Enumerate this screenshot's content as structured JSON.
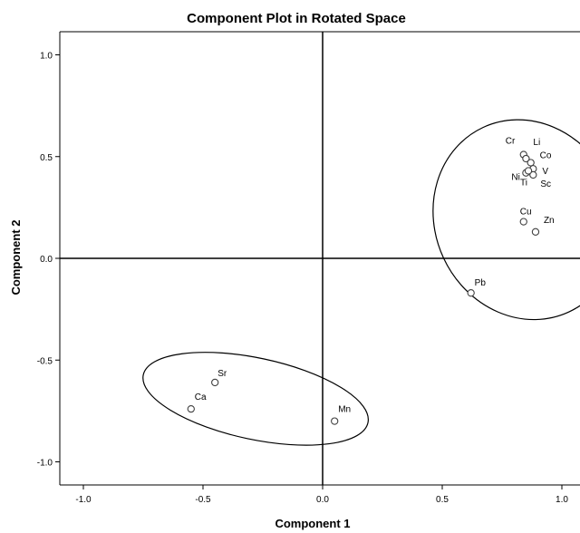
{
  "chart_data": {
    "type": "scatter",
    "title": "Component Plot in Rotated Space",
    "xlabel": "Component 1",
    "ylabel": "Component 2",
    "xlim": [
      -1.1,
      1.1
    ],
    "ylim": [
      -1.1,
      1.1
    ],
    "xticks": [
      "-1.0",
      "-0.5",
      "0.0",
      "0.5",
      "1.0"
    ],
    "yticks": [
      "1.0",
      "0.5",
      "0.0",
      "-0.5",
      "-1.0"
    ],
    "grid": false,
    "reference_lines": {
      "x": 0,
      "y": 0
    },
    "points": [
      {
        "label": "Cr",
        "x": 0.84,
        "y": 0.51
      },
      {
        "label": "Li",
        "x": 0.85,
        "y": 0.49
      },
      {
        "label": "Co",
        "x": 0.87,
        "y": 0.47
      },
      {
        "label": "V",
        "x": 0.88,
        "y": 0.44
      },
      {
        "label": "Ni",
        "x": 0.85,
        "y": 0.42
      },
      {
        "label": "Sc",
        "x": 0.88,
        "y": 0.41
      },
      {
        "label": "Ti",
        "x": 0.86,
        "y": 0.43
      },
      {
        "label": "Cu",
        "x": 0.84,
        "y": 0.18
      },
      {
        "label": "Zn",
        "x": 0.89,
        "y": 0.13
      },
      {
        "label": "Pb",
        "x": 0.62,
        "y": -0.17
      },
      {
        "label": "Sr",
        "x": -0.45,
        "y": -0.61
      },
      {
        "label": "Ca",
        "x": -0.55,
        "y": -0.74
      },
      {
        "label": "Mn",
        "x": 0.05,
        "y": -0.8
      }
    ],
    "groups": [
      {
        "members": [
          "Cr",
          "Li",
          "Co",
          "V",
          "Ni",
          "Sc",
          "Ti",
          "Cu",
          "Zn",
          "Pb"
        ],
        "cx": 0.85,
        "cy": 0.19,
        "rx": 0.38,
        "ry": 0.5,
        "rotation_deg": -25
      },
      {
        "members": [
          "Sr",
          "Ca",
          "Mn"
        ],
        "cx": -0.28,
        "cy": -0.69,
        "rx": 0.48,
        "ry": 0.2,
        "rotation_deg": 12
      }
    ],
    "colors": {
      "point_stroke": "#404040",
      "axis": "#000000",
      "ellipse": "#000000"
    }
  }
}
